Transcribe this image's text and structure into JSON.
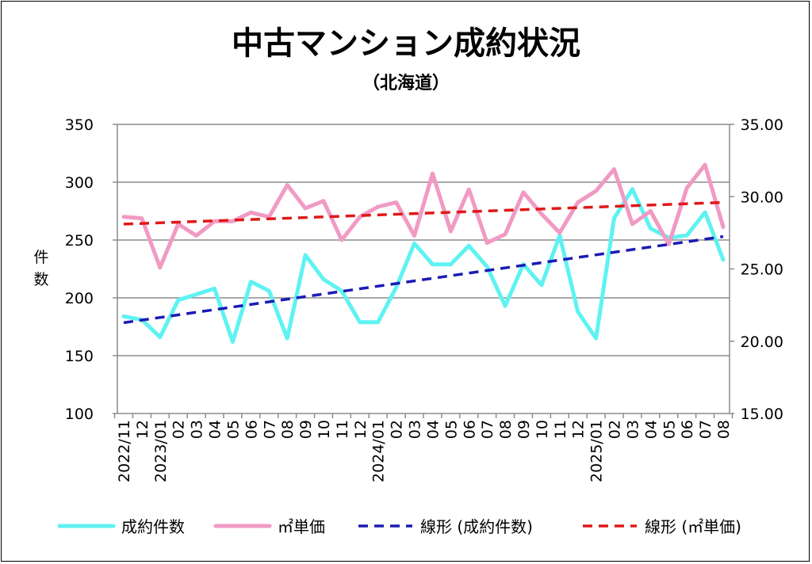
{
  "chart_data": {
    "type": "line",
    "title": "中古マンション成約状況",
    "subtitle": "（北海道）",
    "ylabel_left": "件数",
    "ylabel_right": "",
    "ylim_left": [
      100,
      350
    ],
    "ylim_right": [
      15.0,
      35.0
    ],
    "yticks_left": [
      "100",
      "150",
      "200",
      "250",
      "300",
      "350"
    ],
    "yticks_right": [
      "15.00",
      "20.00",
      "25.00",
      "30.00",
      "35.00"
    ],
    "grid": true,
    "legend_position": "bottom",
    "categories": [
      "2022/11",
      "12",
      "2023/01",
      "02",
      "03",
      "04",
      "05",
      "06",
      "07",
      "08",
      "09",
      "10",
      "11",
      "12",
      "2024/01",
      "02",
      "03",
      "04",
      "05",
      "06",
      "07",
      "08",
      "09",
      "10",
      "11",
      "12",
      "2025/01",
      "02",
      "03",
      "04",
      "05",
      "06",
      "07",
      "08"
    ],
    "series": [
      {
        "name": "成約件数",
        "axis": "left",
        "color": "#5ff2f2",
        "style": "solid",
        "values": [
          184,
          181,
          166,
          198,
          203,
          208,
          162,
          214,
          206,
          165,
          237,
          216,
          206,
          179,
          179,
          209,
          247,
          229,
          229,
          245,
          227,
          193,
          229,
          211,
          254,
          188,
          165,
          269,
          294,
          260,
          252,
          254,
          274,
          233
        ]
      },
      {
        "name": "㎡単価",
        "axis": "right",
        "color": "#f09ac4",
        "style": "solid",
        "values": [
          28.6,
          28.5,
          25.1,
          28.1,
          27.3,
          28.3,
          28.3,
          28.9,
          28.6,
          30.8,
          29.2,
          29.7,
          27.0,
          28.6,
          29.3,
          29.6,
          27.3,
          31.6,
          27.6,
          30.5,
          26.8,
          27.4,
          30.3,
          28.8,
          27.5,
          29.6,
          30.4,
          31.9,
          28.1,
          29.0,
          26.7,
          30.6,
          32.2,
          27.9
        ]
      },
      {
        "name": "線形 (成約件数)",
        "axis": "left",
        "color": "#1b1bb5",
        "style": "dashed",
        "trend": [
          178.5,
          253.0
        ]
      },
      {
        "name": "線形 (㎡単価)",
        "axis": "right",
        "color": "#e01818",
        "style": "dashed",
        "trend": [
          28.1,
          29.6
        ]
      }
    ]
  }
}
